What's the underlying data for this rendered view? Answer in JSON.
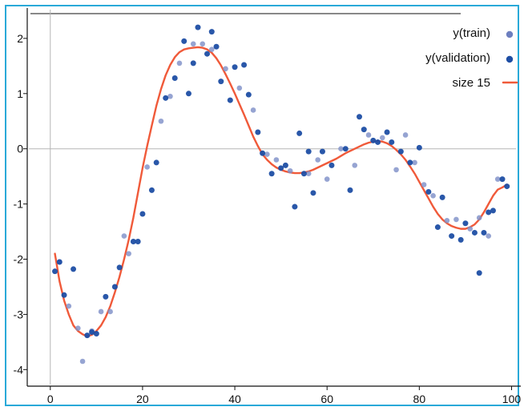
{
  "chart_data": {
    "type": "scatter",
    "x_ticks": [
      "0",
      "20",
      "40",
      "60",
      "80",
      "100"
    ],
    "y_ticks": [
      "-4",
      "-3",
      "-2",
      "-1",
      "0",
      "1",
      "2"
    ],
    "xlim": [
      -5,
      102
    ],
    "ylim": [
      -4.3,
      2.55
    ],
    "grid": false,
    "zero_lines": true,
    "legend_position": "top-right",
    "legend": [
      {
        "label": "y(train)",
        "marker": "dot",
        "color": "#6d7fbf"
      },
      {
        "label": "y(validation)",
        "marker": "dot",
        "color": "#1e4ea4"
      },
      {
        "label": "size 15",
        "marker": "line",
        "color": "#f05a3a"
      }
    ],
    "colors": {
      "train": "#7f90c8",
      "validation": "#1e4ea4",
      "fit": "#f05a3a",
      "frame": "#29a9d8",
      "zero_line": "#b5b5b5"
    },
    "series": [
      {
        "key": "train",
        "points": [
          [
            2,
            -2.05
          ],
          [
            4,
            -2.85
          ],
          [
            6,
            -3.25
          ],
          [
            7,
            -3.85
          ],
          [
            9,
            -3.3
          ],
          [
            11,
            -2.95
          ],
          [
            13,
            -2.95
          ],
          [
            16,
            -1.58
          ],
          [
            17,
            -1.9
          ],
          [
            21,
            -0.33
          ],
          [
            24,
            0.5
          ],
          [
            26,
            0.95
          ],
          [
            28,
            1.55
          ],
          [
            31,
            1.9
          ],
          [
            33,
            1.9
          ],
          [
            35,
            1.8
          ],
          [
            38,
            1.45
          ],
          [
            41,
            1.1
          ],
          [
            44,
            0.7
          ],
          [
            47,
            -0.1
          ],
          [
            49,
            -0.2
          ],
          [
            52,
            -0.4
          ],
          [
            56,
            -0.45
          ],
          [
            58,
            -0.2
          ],
          [
            60,
            -0.55
          ],
          [
            63,
            0.0
          ],
          [
            66,
            -0.3
          ],
          [
            69,
            0.25
          ],
          [
            72,
            0.2
          ],
          [
            75,
            -0.38
          ],
          [
            77,
            0.25
          ],
          [
            79,
            -0.25
          ],
          [
            81,
            -0.65
          ],
          [
            83,
            -0.85
          ],
          [
            86,
            -1.3
          ],
          [
            88,
            -1.28
          ],
          [
            91,
            -1.45
          ],
          [
            93,
            -1.25
          ],
          [
            95,
            -1.58
          ],
          [
            97,
            -0.55
          ]
        ]
      },
      {
        "key": "validation",
        "points": [
          [
            1,
            -2.22
          ],
          [
            2,
            -2.05
          ],
          [
            3,
            -2.65
          ],
          [
            5,
            -2.18
          ],
          [
            8,
            -3.38
          ],
          [
            9,
            -3.32
          ],
          [
            10,
            -3.35
          ],
          [
            12,
            -2.68
          ],
          [
            14,
            -2.5
          ],
          [
            15,
            -2.15
          ],
          [
            18,
            -1.68
          ],
          [
            19,
            -1.68
          ],
          [
            20,
            -1.18
          ],
          [
            22,
            -0.75
          ],
          [
            23,
            -0.25
          ],
          [
            25,
            0.92
          ],
          [
            27,
            1.28
          ],
          [
            29,
            1.95
          ],
          [
            30,
            1.0
          ],
          [
            31,
            1.55
          ],
          [
            32,
            2.2
          ],
          [
            34,
            1.72
          ],
          [
            35,
            2.12
          ],
          [
            36,
            1.85
          ],
          [
            37,
            1.22
          ],
          [
            39,
            0.88
          ],
          [
            40,
            1.48
          ],
          [
            42,
            1.52
          ],
          [
            43,
            0.98
          ],
          [
            45,
            0.3
          ],
          [
            46,
            -0.08
          ],
          [
            48,
            -0.45
          ],
          [
            50,
            -0.35
          ],
          [
            51,
            -0.3
          ],
          [
            53,
            -1.05
          ],
          [
            54,
            0.28
          ],
          [
            55,
            -0.45
          ],
          [
            56,
            -0.05
          ],
          [
            57,
            -0.8
          ],
          [
            59,
            -0.05
          ],
          [
            61,
            -0.3
          ],
          [
            64,
            0.0
          ],
          [
            65,
            -0.75
          ],
          [
            67,
            0.58
          ],
          [
            68,
            0.35
          ],
          [
            70,
            0.15
          ],
          [
            71,
            0.12
          ],
          [
            73,
            0.3
          ],
          [
            74,
            0.12
          ],
          [
            76,
            -0.05
          ],
          [
            78,
            -0.25
          ],
          [
            80,
            0.02
          ],
          [
            82,
            -0.78
          ],
          [
            84,
            -1.42
          ],
          [
            85,
            -0.88
          ],
          [
            87,
            -1.58
          ],
          [
            89,
            -1.65
          ],
          [
            90,
            -1.35
          ],
          [
            92,
            -1.52
          ],
          [
            93,
            -2.25
          ],
          [
            94,
            -1.52
          ],
          [
            95,
            -1.15
          ],
          [
            96,
            -1.12
          ],
          [
            98,
            -0.55
          ],
          [
            99,
            -0.68
          ]
        ]
      }
    ],
    "fit_curve": {
      "key": "size 15",
      "points": [
        [
          1,
          -1.9
        ],
        [
          2,
          -2.4
        ],
        [
          3,
          -2.75
        ],
        [
          4,
          -3.0
        ],
        [
          5,
          -3.2
        ],
        [
          6,
          -3.3
        ],
        [
          7,
          -3.36
        ],
        [
          8,
          -3.4
        ],
        [
          9,
          -3.37
        ],
        [
          10,
          -3.3
        ],
        [
          11,
          -3.2
        ],
        [
          12,
          -3.05
        ],
        [
          13,
          -2.85
        ],
        [
          14,
          -2.6
        ],
        [
          15,
          -2.32
        ],
        [
          16,
          -2.0
        ],
        [
          17,
          -1.65
        ],
        [
          18,
          -1.25
        ],
        [
          19,
          -0.8
        ],
        [
          20,
          -0.35
        ],
        [
          21,
          0.05
        ],
        [
          22,
          0.42
        ],
        [
          23,
          0.78
        ],
        [
          24,
          1.08
        ],
        [
          25,
          1.33
        ],
        [
          26,
          1.52
        ],
        [
          27,
          1.66
        ],
        [
          28,
          1.75
        ],
        [
          29,
          1.8
        ],
        [
          30,
          1.82
        ],
        [
          31,
          1.83
        ],
        [
          32,
          1.84
        ],
        [
          33,
          1.83
        ],
        [
          34,
          1.8
        ],
        [
          35,
          1.74
        ],
        [
          36,
          1.64
        ],
        [
          37,
          1.51
        ],
        [
          38,
          1.35
        ],
        [
          39,
          1.18
        ],
        [
          40,
          1.0
        ],
        [
          41,
          0.81
        ],
        [
          42,
          0.62
        ],
        [
          43,
          0.42
        ],
        [
          44,
          0.22
        ],
        [
          45,
          0.05
        ],
        [
          46,
          -0.1
        ],
        [
          47,
          -0.2
        ],
        [
          48,
          -0.28
        ],
        [
          49,
          -0.34
        ],
        [
          50,
          -0.38
        ],
        [
          51,
          -0.41
        ],
        [
          52,
          -0.43
        ],
        [
          53,
          -0.44
        ],
        [
          54,
          -0.44
        ],
        [
          55,
          -0.43
        ],
        [
          56,
          -0.41
        ],
        [
          57,
          -0.38
        ],
        [
          58,
          -0.34
        ],
        [
          59,
          -0.3
        ],
        [
          60,
          -0.26
        ],
        [
          61,
          -0.22
        ],
        [
          62,
          -0.18
        ],
        [
          63,
          -0.13
        ],
        [
          64,
          -0.08
        ],
        [
          65,
          -0.04
        ],
        [
          66,
          0.0
        ],
        [
          67,
          0.04
        ],
        [
          68,
          0.08
        ],
        [
          69,
          0.11
        ],
        [
          70,
          0.13
        ],
        [
          71,
          0.14
        ],
        [
          72,
          0.13
        ],
        [
          73,
          0.1
        ],
        [
          74,
          0.05
        ],
        [
          75,
          -0.02
        ],
        [
          76,
          -0.1
        ],
        [
          77,
          -0.2
        ],
        [
          78,
          -0.32
        ],
        [
          79,
          -0.45
        ],
        [
          80,
          -0.6
        ],
        [
          81,
          -0.75
        ],
        [
          82,
          -0.9
        ],
        [
          83,
          -1.05
        ],
        [
          84,
          -1.18
        ],
        [
          85,
          -1.28
        ],
        [
          86,
          -1.35
        ],
        [
          87,
          -1.4
        ],
        [
          88,
          -1.43
        ],
        [
          89,
          -1.45
        ],
        [
          90,
          -1.45
        ],
        [
          91,
          -1.42
        ],
        [
          92,
          -1.37
        ],
        [
          93,
          -1.28
        ],
        [
          94,
          -1.15
        ],
        [
          95,
          -1.0
        ],
        [
          96,
          -0.85
        ],
        [
          97,
          -0.74
        ],
        [
          98,
          -0.7
        ],
        [
          99,
          -0.65
        ]
      ]
    }
  }
}
